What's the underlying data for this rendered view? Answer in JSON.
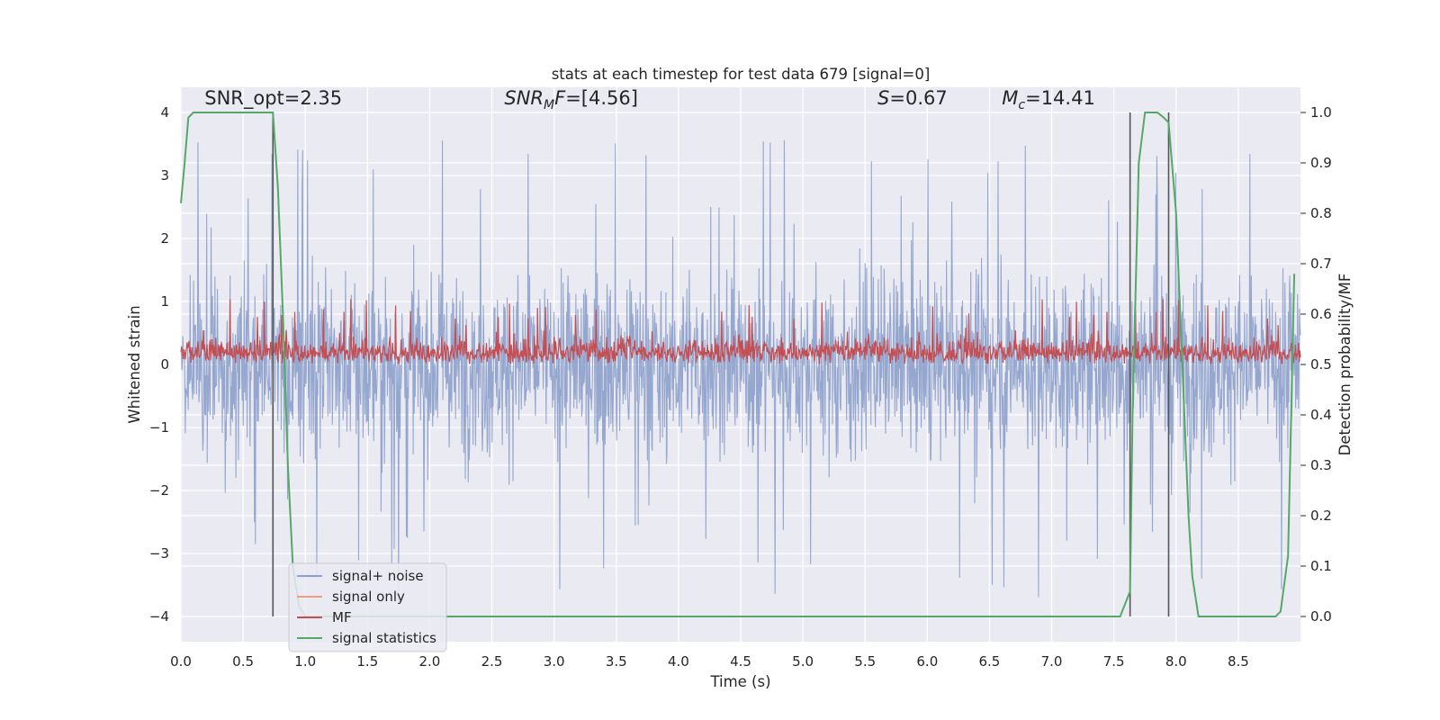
{
  "chart_data": {
    "type": "line",
    "title": "stats at each timestep for test data 679 [signal=0]",
    "xlabel": "Time (s)",
    "ylabel": "Whitened strain",
    "y2label": "Detection probability/MF",
    "xlim": [
      0.0,
      9.0
    ],
    "ylim": [
      -4.4,
      4.4
    ],
    "y2lim": [
      -0.05,
      1.05
    ],
    "xticks": [
      0.0,
      0.5,
      1.0,
      1.5,
      2.0,
      2.5,
      3.0,
      3.5,
      4.0,
      4.5,
      5.0,
      5.5,
      6.0,
      6.5,
      7.0,
      7.5,
      8.0,
      8.5
    ],
    "xtick_labels": [
      "0.0",
      "0.5",
      "1.0",
      "1.5",
      "2.0",
      "2.5",
      "3.0",
      "3.5",
      "4.0",
      "4.5",
      "5.0",
      "5.5",
      "6.0",
      "6.5",
      "7.0",
      "7.5",
      "8.0",
      "8.5"
    ],
    "yticks": [
      -4,
      -3,
      -2,
      -1,
      0,
      1,
      2,
      3,
      4
    ],
    "ytick_labels": [
      "−4",
      "−3",
      "−2",
      "−1",
      "0",
      "1",
      "2",
      "3",
      "4"
    ],
    "y2ticks": [
      0.0,
      0.1,
      0.2,
      0.3,
      0.4,
      0.5,
      0.6,
      0.7,
      0.8,
      0.9,
      1.0
    ],
    "y2tick_labels": [
      "0.0",
      "0.1",
      "0.2",
      "0.3",
      "0.4",
      "0.5",
      "0.6",
      "0.7",
      "0.8",
      "0.9",
      "1.0"
    ],
    "grid": true,
    "annotations": [
      {
        "name": "snr-opt",
        "text": "SNR_opt=2.35",
        "x": 0.19,
        "y": 4.1
      },
      {
        "name": "snr-mf",
        "text": "SNR_MF=[4.56]",
        "x": 2.6,
        "y": 4.1
      },
      {
        "name": "s-value",
        "text": "S=0.67",
        "x": 5.6,
        "y": 4.1
      },
      {
        "name": "mc-value",
        "text": "M_c=14.41",
        "x": 6.6,
        "y": 4.1
      }
    ],
    "vertical_lines": {
      "color": "#555555",
      "x": [
        0.74,
        7.63,
        7.94
      ],
      "y_range": [
        -4,
        4
      ]
    },
    "series": [
      {
        "name": "signal+ noise",
        "axis": "left",
        "color": "#8da0cb",
        "description": "noise strain, dense band roughly -1.6..1.6 with spikes to about +/-4",
        "t_range": [
          0.0,
          9.0
        ],
        "n_points": 2300,
        "envelope": {
          "core": 1.6,
          "peak_max": 4.0,
          "peak_min": -4.0
        }
      },
      {
        "name": "signal only",
        "axis": "left",
        "color": "#e8a07f",
        "values": []
      },
      {
        "name": "MF",
        "axis": "right",
        "color": "#c44e52",
        "description": "matched filter output, band about 0.5..0.58 on right axis with peaks near 0.62",
        "t_range": [
          0.0,
          9.0
        ],
        "n_points": 1800,
        "envelope": {
          "base": 0.5,
          "mean": 0.545,
          "peak": 0.64
        }
      },
      {
        "name": "signal statistics",
        "axis": "right",
        "color": "#55a868",
        "x": [
          0.0,
          0.03,
          0.06,
          0.1,
          0.2,
          0.4,
          0.6,
          0.7,
          0.74,
          0.78,
          0.82,
          0.86,
          0.9,
          0.95,
          1.0,
          1.5,
          2.0,
          3.0,
          4.0,
          5.0,
          6.0,
          7.0,
          7.4,
          7.55,
          7.63,
          7.65,
          7.7,
          7.75,
          7.8,
          7.85,
          7.9,
          7.94,
          8.0,
          8.05,
          8.1,
          8.13,
          8.18,
          8.3,
          8.5,
          8.7,
          8.8,
          8.84,
          8.9,
          8.95
        ],
        "y": [
          0.82,
          0.9,
          0.99,
          1.0,
          1.0,
          1.0,
          1.0,
          1.0,
          1.0,
          0.85,
          0.6,
          0.3,
          0.1,
          0.02,
          0.0,
          0.0,
          0.0,
          0.0,
          0.0,
          0.0,
          0.0,
          0.0,
          0.0,
          0.0,
          0.05,
          0.4,
          0.9,
          1.0,
          1.0,
          1.0,
          0.99,
          0.98,
          0.8,
          0.5,
          0.2,
          0.08,
          0.0,
          0.0,
          0.0,
          0.0,
          0.0,
          0.01,
          0.12,
          0.68
        ]
      }
    ]
  }
}
